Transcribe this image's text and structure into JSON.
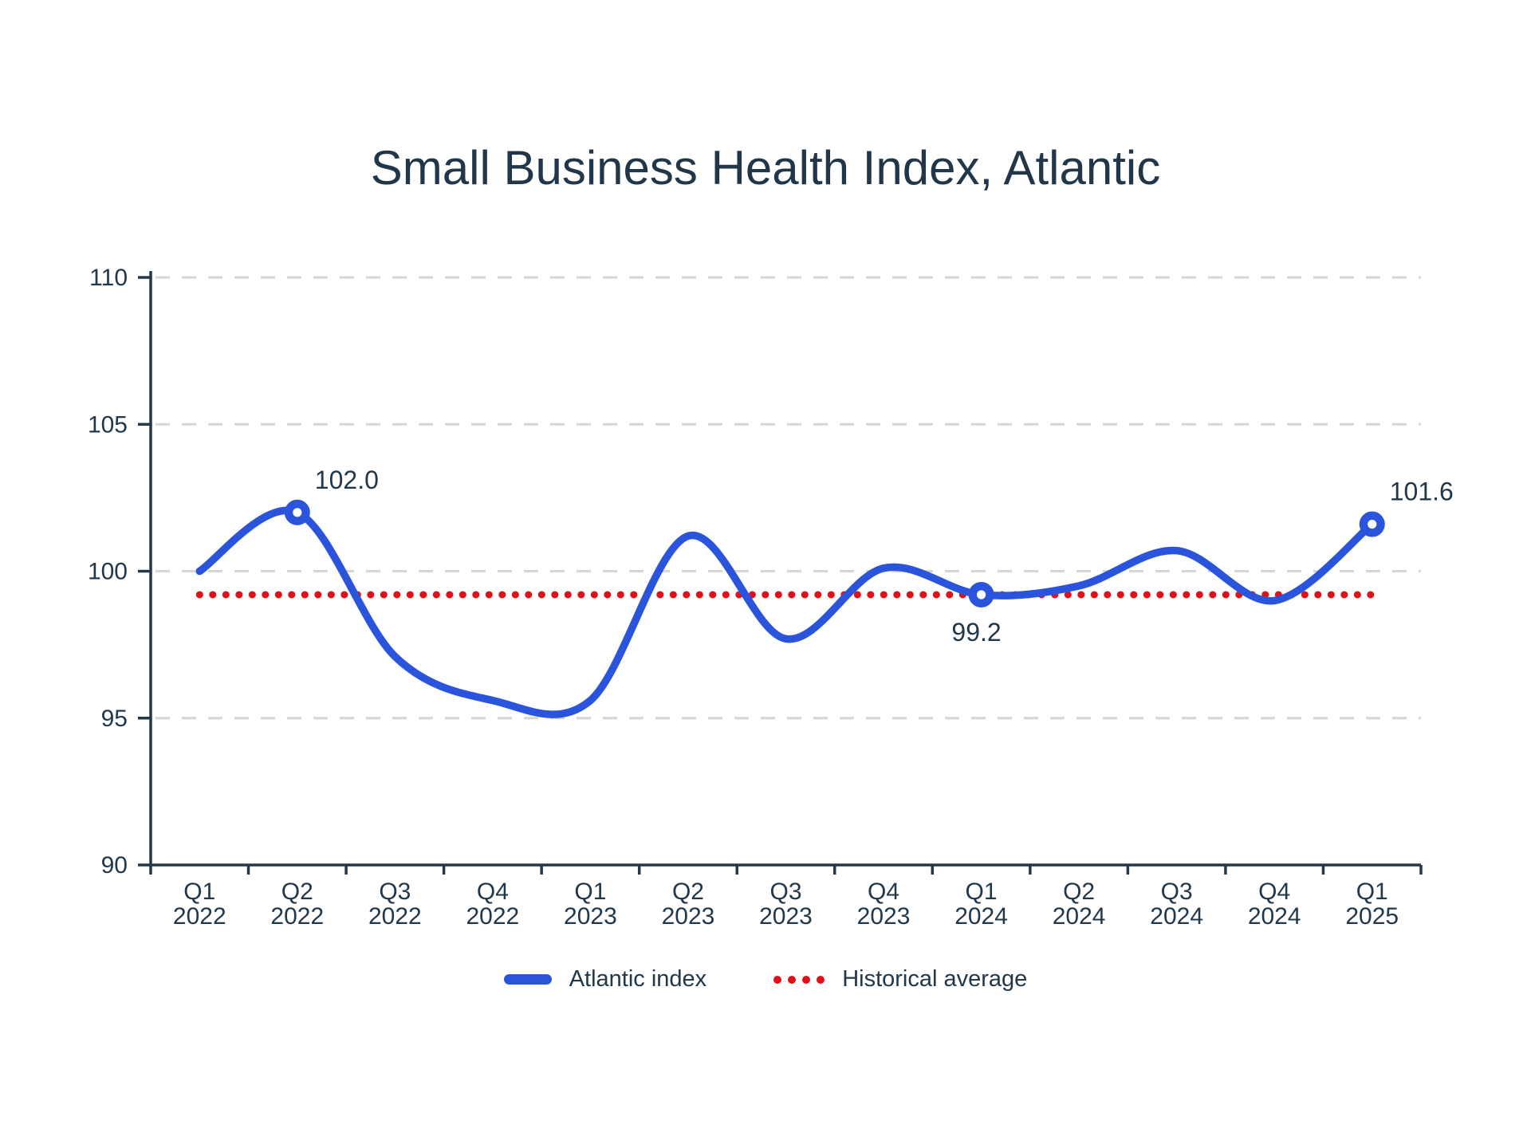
{
  "title": "Small Business Health Index, Atlantic",
  "chart_data": {
    "type": "line",
    "title": "Small Business Health Index, Atlantic",
    "categories": [
      "Q1 2022",
      "Q2 2022",
      "Q3 2022",
      "Q4 2022",
      "Q1 2023",
      "Q2 2023",
      "Q3 2023",
      "Q4 2023",
      "Q1 2024",
      "Q2 2024",
      "Q3 2024",
      "Q4 2024",
      "Q1 2025"
    ],
    "series": [
      {
        "name": "Atlantic index",
        "type": "spline",
        "color": "#2b54dd",
        "line_width": 9.5,
        "values": [
          100.0,
          102.0,
          97.1,
          95.6,
          95.6,
          101.2,
          97.7,
          100.1,
          99.2,
          99.5,
          100.7,
          99.0,
          101.6
        ],
        "markers_at": [
          1,
          8,
          12
        ],
        "marker_style": "open-circle"
      },
      {
        "name": "Historical average",
        "type": "dotted-hline",
        "color": "#e01018",
        "value": 99.2
      }
    ],
    "annotations": [
      {
        "point": 1,
        "text": "102.0",
        "placement": "top-right"
      },
      {
        "point": 8,
        "text": "99.2",
        "placement": "bottom"
      },
      {
        "point": 12,
        "text": "101.6",
        "placement": "top-right"
      }
    ],
    "ylim": [
      90,
      110
    ],
    "y_ticks": [
      90,
      95,
      100,
      105,
      110
    ],
    "grid": "horizontal-dashed",
    "legend_position": "bottom"
  },
  "legend": {
    "items": [
      {
        "label": "Atlantic index",
        "swatch": "line",
        "color": "#2b54dd"
      },
      {
        "label": "Historical average",
        "swatch": "dots",
        "color": "#e01018"
      }
    ]
  },
  "colors": {
    "accent_blue": "#2b54dd",
    "accent_red": "#e01018",
    "text": "#21374a",
    "grid": "#d6d6d6",
    "axis": "#24384a",
    "background": "#ffffff"
  }
}
